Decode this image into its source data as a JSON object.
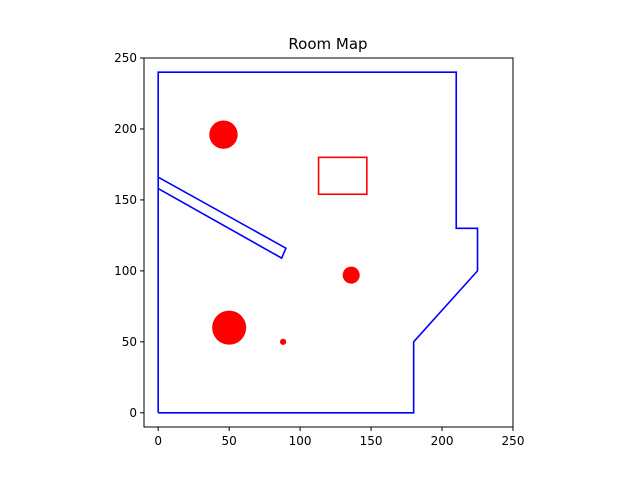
{
  "chart_data": {
    "type": "scatter",
    "title": "Room Map",
    "xlabel": "",
    "ylabel": "",
    "xlim": [
      -10,
      250
    ],
    "ylim": [
      -10,
      250
    ],
    "xticks": [
      0,
      50,
      100,
      150,
      200,
      250
    ],
    "yticks": [
      0,
      50,
      100,
      150,
      200,
      250
    ],
    "grid": false,
    "colors": {
      "walls": "#0000ff",
      "obstacles": "#ff0000"
    },
    "walls": [
      {
        "name": "outer-wall",
        "points": [
          [
            0,
            0
          ],
          [
            0,
            240
          ],
          [
            210,
            240
          ],
          [
            210,
            130
          ],
          [
            225,
            130
          ],
          [
            225,
            100
          ],
          [
            180,
            50
          ],
          [
            180,
            0
          ],
          [
            0,
            0
          ]
        ]
      },
      {
        "name": "diagonal-wall",
        "points": [
          [
            0,
            166
          ],
          [
            90,
            116
          ],
          [
            87,
            109
          ],
          [
            0,
            158
          ]
        ]
      }
    ],
    "circles": [
      {
        "x": 46,
        "y": 196,
        "r": 10
      },
      {
        "x": 50,
        "y": 60,
        "r": 12
      },
      {
        "x": 136,
        "y": 97,
        "r": 6
      },
      {
        "x": 88,
        "y": 50,
        "r": 2.2
      }
    ],
    "rectangles": [
      {
        "x0": 113,
        "y0": 154,
        "x1": 147,
        "y1": 180
      }
    ]
  }
}
